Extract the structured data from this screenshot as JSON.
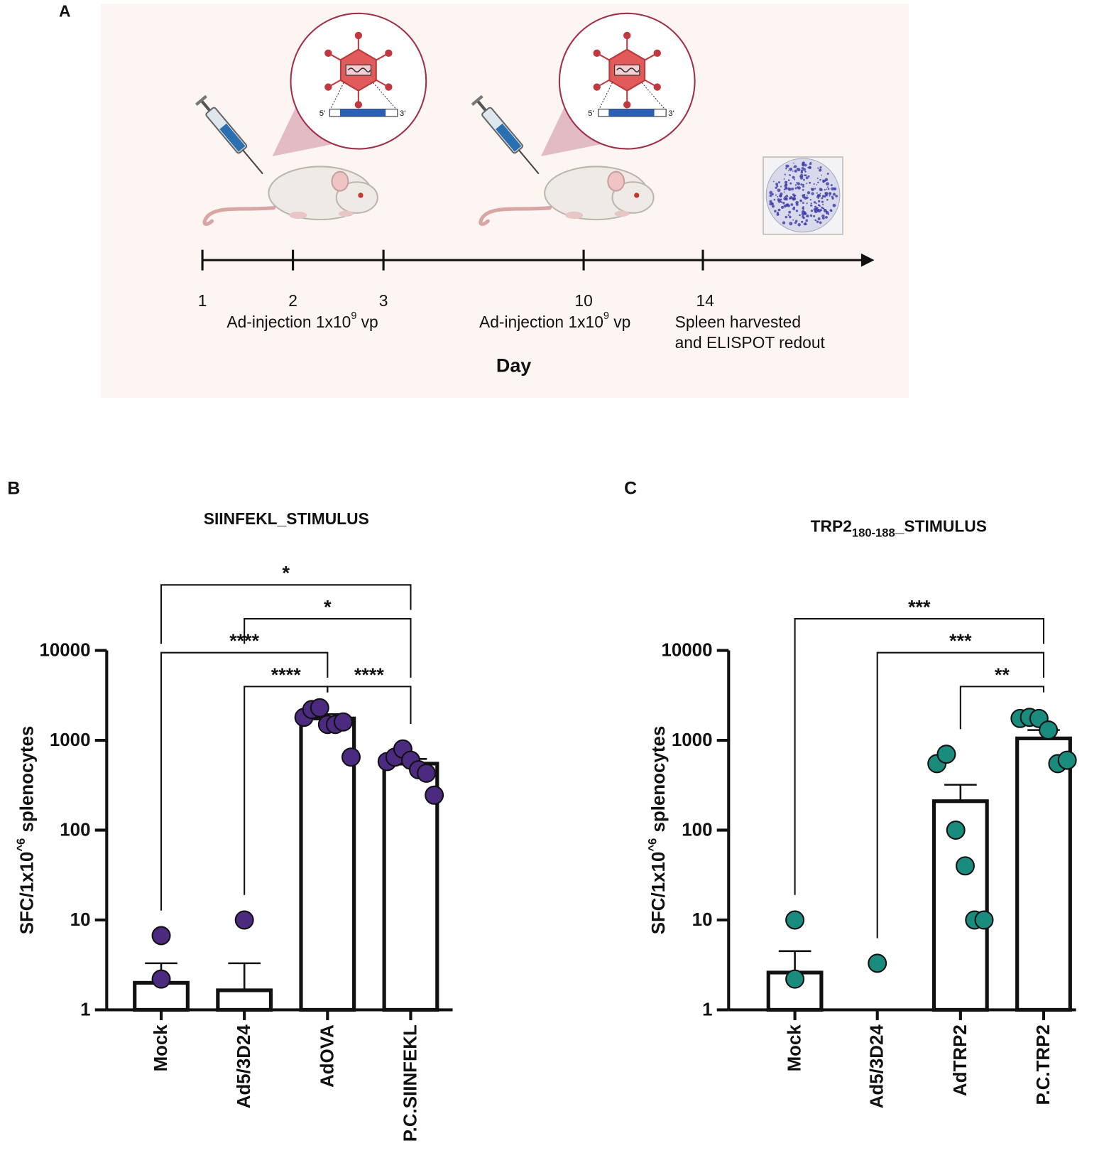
{
  "panel_a": {
    "label": "A",
    "timeline_ticks": [
      "1",
      "2",
      "3",
      "10",
      "14"
    ],
    "injections": [
      {
        "text": "Ad-injection 1x10",
        "exponent": "9",
        "unit": "vp"
      },
      {
        "text": "Ad-injection 1x10",
        "exponent": "9",
        "unit": "vp"
      }
    ],
    "harvest": [
      "Spleen harvested",
      "and ELISPOT redout"
    ],
    "axis_label": "Day",
    "construct_ends": [
      "5'",
      "3'"
    ]
  },
  "chart_data": [
    {
      "type": "bar",
      "panel": "B",
      "title": "SIINFEKL_STIMULUS",
      "ylabel": "SFC/1x10",
      "ylabel_superscript": "^6",
      "ylabel_suffix": "splenocytes",
      "categories": [
        "Mock",
        "Ad5/3D24",
        "AdOVA",
        "P.C.SIINFEKL"
      ],
      "values": [
        2,
        1.65,
        1750,
        550
      ],
      "errors": [
        1.3,
        1.65,
        200,
        70
      ],
      "points": [
        [
          6.7,
          2.2
        ],
        [
          10
        ],
        [
          1800,
          2200,
          2300,
          1500,
          1500,
          1600,
          650
        ],
        [
          580,
          650,
          800,
          600,
          470,
          430,
          245
        ]
      ],
      "point_color": "#4b2a80",
      "bar_color": "#ffffff",
      "log_scale": true,
      "ylim": [
        1,
        10000
      ],
      "yticks": [
        1,
        10,
        100,
        1000,
        10000
      ],
      "comparisons": [
        {
          "pair": [
            "Mock",
            "P.C.SIINFEKL"
          ],
          "label": "*"
        },
        {
          "pair": [
            "Ad5/3D24",
            "P.C.SIINFEKL"
          ],
          "label": "*"
        },
        {
          "pair": [
            "Mock",
            "AdOVA"
          ],
          "label": "****"
        },
        {
          "pair": [
            "Ad5/3D24",
            "AdOVA"
          ],
          "label": "****"
        },
        {
          "pair": [
            "AdOVA",
            "P.C.SIINFEKL"
          ],
          "label": "****"
        }
      ]
    },
    {
      "type": "bar",
      "panel": "C",
      "title": "TRP2",
      "title_subscript": "180-188",
      "title_suffix": "_STIMULUS",
      "ylabel": "SFC/1x10",
      "ylabel_superscript": "^6",
      "ylabel_suffix": "splenocytes",
      "categories": [
        "Mock",
        "Ad5/3D24",
        "AdTRP2",
        "P.C.TRP2"
      ],
      "values": [
        2.6,
        null,
        210,
        1050
      ],
      "errors": [
        1.9,
        null,
        110,
        250
      ],
      "points": [
        [
          10,
          2.2
        ],
        [
          3.3
        ],
        [
          550,
          700,
          100,
          40,
          10,
          10
        ],
        [
          1750,
          1800,
          1750,
          1300,
          550,
          600
        ]
      ],
      "point_color": "#1a8c7e",
      "bar_color": "#ffffff",
      "log_scale": true,
      "ylim": [
        1,
        10000
      ],
      "yticks": [
        1,
        10,
        100,
        1000,
        10000
      ],
      "comparisons": [
        {
          "pair": [
            "Mock",
            "P.C.TRP2"
          ],
          "label": "***"
        },
        {
          "pair": [
            "Ad5/3D24",
            "P.C.TRP2"
          ],
          "label": "***"
        },
        {
          "pair": [
            "AdTRP2",
            "P.C.TRP2"
          ],
          "label": "**"
        }
      ]
    }
  ]
}
